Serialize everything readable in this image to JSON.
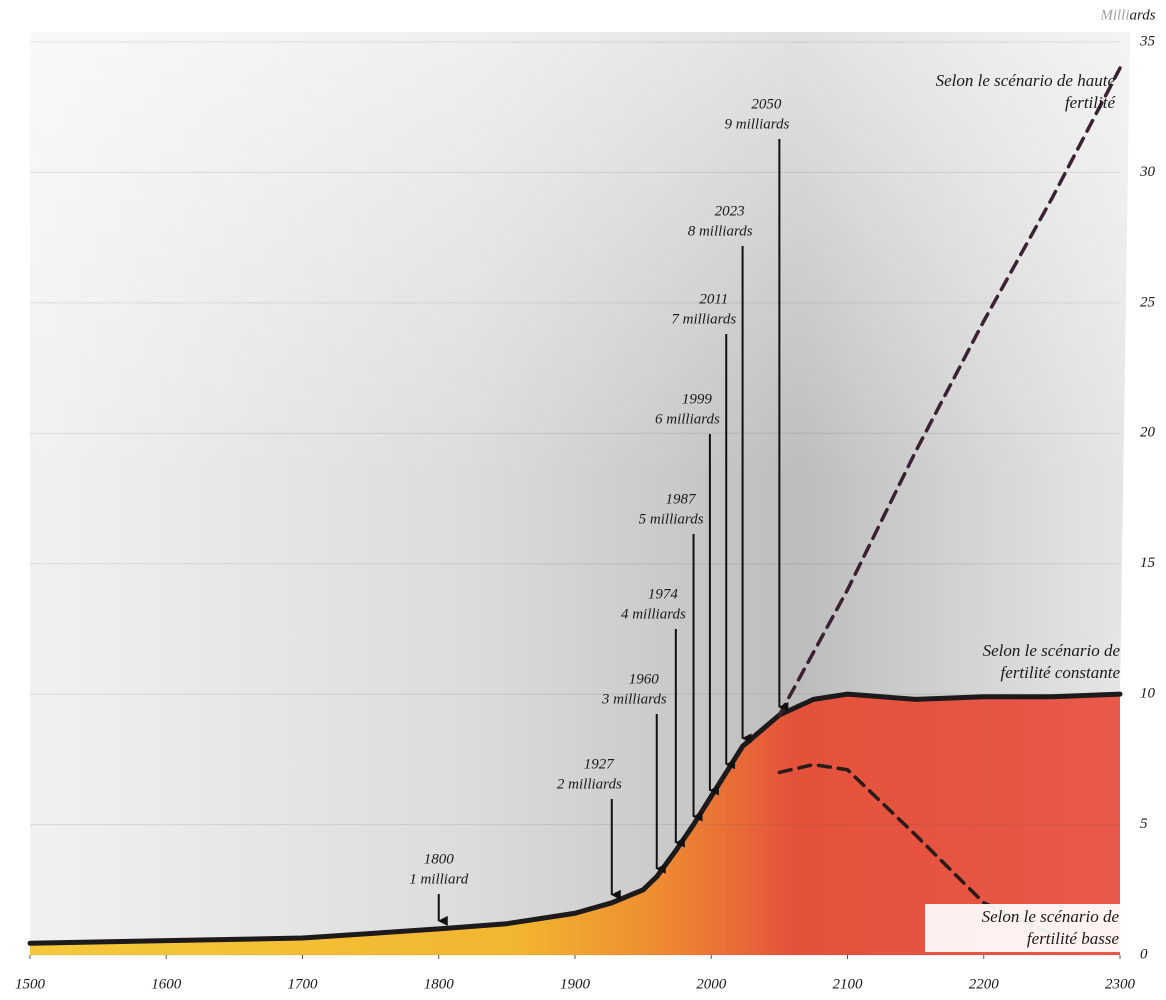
{
  "chart_data": {
    "type": "line",
    "y_label": "Milliards",
    "x": [
      1500,
      1600,
      1700,
      1800,
      1850,
      1900,
      1927,
      1950,
      1960,
      1974,
      1987,
      1999,
      2011,
      2023,
      2050,
      2075,
      2100,
      2150,
      2200,
      2250,
      2300
    ],
    "series": [
      {
        "name": "Selon le scénario de fertilité constante",
        "color": "#1e1a1c",
        "dashed": false,
        "values": [
          0.45,
          0.55,
          0.65,
          1,
          1.2,
          1.6,
          2,
          2.5,
          3,
          4,
          5,
          6,
          7,
          8,
          9.2,
          9.8,
          10,
          9.8,
          9.9,
          9.9,
          10
        ]
      },
      {
        "name": "Selon le scénario de haute fertilité",
        "color": "#3a2232",
        "dashed": true,
        "values": [
          null,
          null,
          null,
          null,
          null,
          null,
          null,
          null,
          null,
          null,
          null,
          null,
          null,
          null,
          9.2,
          11.6,
          14,
          19.3,
          24.3,
          29,
          34
        ]
      },
      {
        "name": "Selon le scénario de fertilité basse",
        "color": "#2a1a1a",
        "dashed": true,
        "values": [
          null,
          null,
          null,
          null,
          null,
          null,
          null,
          null,
          null,
          null,
          null,
          null,
          null,
          null,
          7.0,
          7.3,
          7.1,
          4.6,
          2.0,
          0.8,
          null
        ]
      }
    ],
    "xlim": [
      1500,
      2300
    ],
    "xticks": [
      1500,
      1600,
      1700,
      1800,
      1900,
      2000,
      2100,
      2200,
      2300
    ],
    "ylim": [
      0,
      35
    ],
    "yticks": [
      0,
      5,
      10,
      15,
      20,
      25,
      30,
      35
    ],
    "grid": true,
    "annotations": [
      {
        "year": 1800,
        "label": "1 milliard"
      },
      {
        "year": 1927,
        "label": "2 milliards"
      },
      {
        "year": 1960,
        "label": "3 milliards"
      },
      {
        "year": 1974,
        "label": "4 milliards"
      },
      {
        "year": 1987,
        "label": "5 milliards"
      },
      {
        "year": 1999,
        "label": "6 milliards"
      },
      {
        "year": 2011,
        "label": "7 milliards"
      },
      {
        "year": 2023,
        "label": "8 milliards"
      },
      {
        "year": 2050,
        "label": "9 milliards"
      }
    ]
  }
}
